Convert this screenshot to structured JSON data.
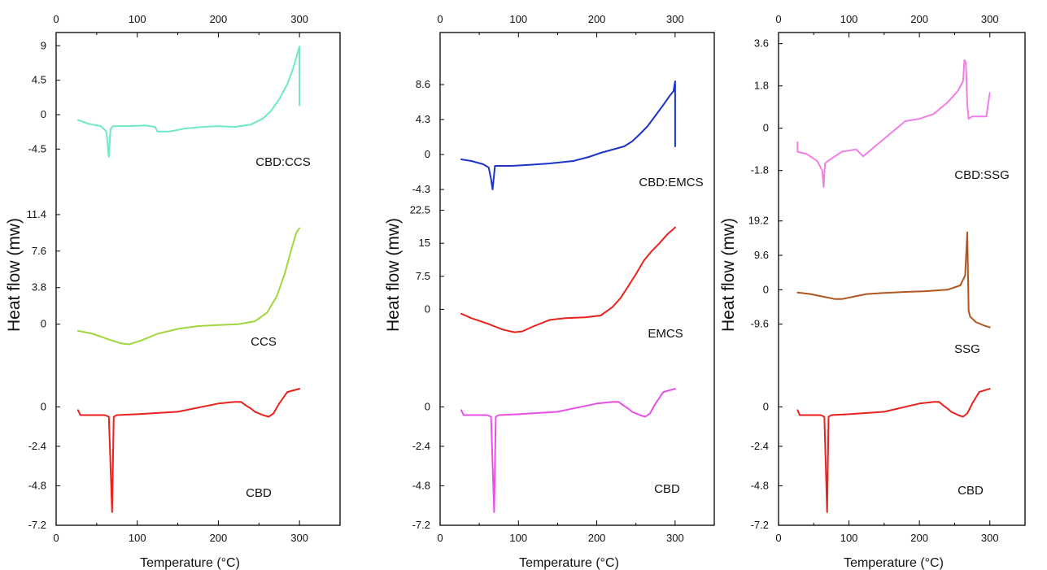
{
  "chart_data": [
    {
      "type": "line",
      "panel": "left",
      "xlabel": "Temperature (°C)",
      "ylabel": "Heat flow (mw)",
      "x_ticks": [
        "0",
        "100",
        "200",
        "300"
      ],
      "xlim": [
        0,
        350
      ],
      "subplots": [
        {
          "ylim": [
            -6.8,
            10.2
          ],
          "y_ticks": [
            "9",
            "4.5",
            "0",
            "-4.5"
          ],
          "y_tick_values": [
            9,
            4.5,
            0,
            -4.5
          ],
          "series": [
            {
              "name": "CBD:CCS",
              "color": "#6ee8c8",
              "x": [
                27,
                40,
                55,
                62,
                65,
                67,
                70,
                90,
                110,
                122,
                125,
                140,
                160,
                180,
                200,
                220,
                240,
                255,
                265,
                275,
                285,
                292,
                297,
                300,
                300
              ],
              "y": [
                -0.7,
                -1.2,
                -1.5,
                -2.2,
                -5.5,
                -1.9,
                -1.5,
                -1.5,
                -1.4,
                -1.6,
                -2.2,
                -2.2,
                -1.8,
                -1.6,
                -1.5,
                -1.6,
                -1.3,
                -0.5,
                0.5,
                2.0,
                4.0,
                6.0,
                7.8,
                8.9,
                1.2
              ]
            }
          ]
        },
        {
          "ylim": [
            -3.5,
            13.0
          ],
          "y_ticks": [
            "11.4",
            "7.6",
            "3.8",
            "0"
          ],
          "y_tick_values": [
            11.4,
            7.6,
            3.8,
            0
          ],
          "series": [
            {
              "name": "CCS",
              "color": "#a2d63e",
              "x": [
                27,
                45,
                65,
                80,
                90,
                105,
                125,
                150,
                175,
                200,
                225,
                245,
                260,
                272,
                282,
                290,
                296,
                300
              ],
              "y": [
                -0.7,
                -1.0,
                -1.6,
                -2.0,
                -2.1,
                -1.7,
                -1.0,
                -0.5,
                -0.2,
                -0.1,
                0.0,
                0.3,
                1.2,
                2.9,
                5.3,
                7.8,
                9.5,
                10.0
              ]
            }
          ]
        },
        {
          "ylim": [
            -7.2,
            1.5
          ],
          "y_ticks": [
            "0",
            "-2.4",
            "-4.8",
            "-7.2"
          ],
          "y_tick_values": [
            0,
            -2.4,
            -4.8,
            -7.2
          ],
          "series": [
            {
              "name": "CBD",
              "color": "#e8221c",
              "x": [
                27,
                30,
                45,
                60,
                65,
                67,
                69,
                71,
                75,
                100,
                150,
                200,
                220,
                228,
                235,
                240,
                245,
                255,
                262,
                268,
                275,
                285,
                300
              ],
              "y": [
                -0.2,
                -0.5,
                -0.5,
                -0.5,
                -0.6,
                -3.5,
                -6.4,
                -0.6,
                -0.5,
                -0.45,
                -0.3,
                0.2,
                0.3,
                0.3,
                0.05,
                -0.1,
                -0.3,
                -0.5,
                -0.6,
                -0.4,
                0.2,
                0.9,
                1.1
              ]
            }
          ]
        }
      ]
    },
    {
      "type": "line",
      "panel": "middle",
      "xlabel": "Temperature (°C)",
      "ylabel": "Heat flow (mw)",
      "x_ticks": [
        "0",
        "100",
        "200",
        "300"
      ],
      "xlim": [
        0,
        350
      ],
      "subplots": [
        {
          "ylim": [
            -5.5,
            12.0
          ],
          "y_ticks": [
            "8.6",
            "4.3",
            "0",
            "-4.3"
          ],
          "y_tick_values": [
            8.6,
            4.3,
            0,
            -4.3
          ],
          "series": [
            {
              "name": "CBD:EMCS",
              "color": "#1c34c8",
              "x": [
                27,
                40,
                55,
                62,
                65,
                67,
                70,
                90,
                110,
                140,
                170,
                190,
                205,
                220,
                235,
                245,
                255,
                265,
                275,
                285,
                293,
                298,
                300,
                300
              ],
              "y": [
                -0.6,
                -0.8,
                -1.2,
                -1.6,
                -3.0,
                -4.3,
                -1.4,
                -1.4,
                -1.3,
                -1.1,
                -0.8,
                -0.3,
                0.2,
                0.6,
                1.0,
                1.6,
                2.5,
                3.5,
                4.8,
                6.1,
                7.2,
                7.8,
                9.0,
                1.0
              ]
            }
          ]
        },
        {
          "ylim": [
            -11.0,
            25.0
          ],
          "y_ticks": [
            "22.5",
            "15",
            "7.5",
            "0"
          ],
          "y_tick_values": [
            22.5,
            15,
            7.5,
            0
          ],
          "series": [
            {
              "name": "EMCS",
              "color": "#e8221c",
              "x": [
                27,
                40,
                60,
                80,
                95,
                105,
                120,
                140,
                160,
                185,
                205,
                220,
                230,
                240,
                250,
                260,
                270,
                280,
                290,
                300
              ],
              "y": [
                -1.0,
                -2.0,
                -3.2,
                -4.6,
                -5.2,
                -5.0,
                -3.8,
                -2.4,
                -2.0,
                -1.8,
                -1.4,
                0.5,
                2.5,
                5.2,
                8.0,
                11.0,
                13.2,
                15.0,
                17.0,
                18.6
              ]
            }
          ]
        },
        {
          "ylim": [
            -7.2,
            1.5
          ],
          "y_ticks": [
            "0",
            "-2.4",
            "-4.8",
            "-7.2"
          ],
          "y_tick_values": [
            0,
            -2.4,
            -4.8,
            -7.2
          ],
          "series": [
            {
              "name": "CBD",
              "color": "#e850e8",
              "x": [
                27,
                30,
                45,
                60,
                65,
                67,
                69,
                71,
                75,
                100,
                150,
                200,
                220,
                228,
                235,
                240,
                245,
                255,
                262,
                268,
                275,
                285,
                300
              ],
              "y": [
                -0.2,
                -0.5,
                -0.5,
                -0.5,
                -0.6,
                -3.5,
                -6.4,
                -0.6,
                -0.5,
                -0.45,
                -0.3,
                0.2,
                0.3,
                0.3,
                0.05,
                -0.1,
                -0.3,
                -0.5,
                -0.6,
                -0.4,
                0.2,
                0.9,
                1.1
              ]
            }
          ]
        }
      ]
    },
    {
      "type": "line",
      "panel": "right",
      "xlabel": "Temperature (°C)",
      "ylabel": "Heat flow (mw)",
      "x_ticks": [
        "0",
        "100",
        "200",
        "300"
      ],
      "xlim": [
        0,
        350
      ],
      "subplots": [
        {
          "ylim": [
            -2.85,
            3.9
          ],
          "y_ticks": [
            "3.6",
            "1.8",
            "0",
            "-1.8"
          ],
          "y_tick_values": [
            3.6,
            1.8,
            0,
            -1.8
          ],
          "series": [
            {
              "name": "CBD:SSG",
              "color": "#f07ee8",
              "x": [
                27,
                27,
                40,
                55,
                62,
                64,
                66,
                70,
                90,
                110,
                117,
                120,
                140,
                160,
                180,
                200,
                220,
                240,
                255,
                262,
                264,
                266,
                268,
                270,
                275,
                285,
                295,
                300
              ],
              "y": [
                -0.6,
                -1.0,
                -1.1,
                -1.4,
                -1.8,
                -2.5,
                -1.5,
                -1.4,
                -1.0,
                -0.9,
                -1.1,
                -1.2,
                -0.7,
                -0.2,
                0.3,
                0.4,
                0.6,
                1.1,
                1.6,
                2.0,
                2.9,
                2.8,
                1.0,
                0.4,
                0.5,
                0.5,
                0.5,
                1.5
              ]
            }
          ]
        },
        {
          "ylim": [
            -19.0,
            23.0
          ],
          "y_ticks": [
            "19.2",
            "9.6",
            "0",
            "-9.6"
          ],
          "y_tick_values": [
            19.2,
            9.6,
            0,
            -9.6
          ],
          "series": [
            {
              "name": "SSG",
              "color": "#b0561e",
              "x": [
                27,
                45,
                65,
                80,
                90,
                105,
                125,
                150,
                180,
                210,
                240,
                258,
                265,
                268,
                270,
                272,
                280,
                292,
                300
              ],
              "y": [
                -0.8,
                -1.2,
                -2.0,
                -2.6,
                -2.6,
                -2.0,
                -1.2,
                -0.9,
                -0.6,
                -0.4,
                0.0,
                1.2,
                4.0,
                16.0,
                -6.0,
                -7.5,
                -9.0,
                -10.0,
                -10.5
              ]
            }
          ]
        },
        {
          "ylim": [
            -7.2,
            1.5
          ],
          "y_ticks": [
            "0",
            "-2.4",
            "-4.8",
            "-7.2"
          ],
          "y_tick_values": [
            0,
            -2.4,
            -4.8,
            -7.2
          ],
          "series": [
            {
              "name": "CBD",
              "color": "#e8221c",
              "x": [
                27,
                30,
                45,
                60,
                65,
                67,
                69,
                71,
                75,
                100,
                150,
                200,
                220,
                228,
                235,
                240,
                245,
                255,
                262,
                268,
                275,
                285,
                300
              ],
              "y": [
                -0.2,
                -0.5,
                -0.5,
                -0.5,
                -0.6,
                -3.5,
                -6.4,
                -0.6,
                -0.5,
                -0.45,
                -0.3,
                0.2,
                0.3,
                0.3,
                0.05,
                -0.1,
                -0.3,
                -0.5,
                -0.6,
                -0.4,
                0.2,
                0.9,
                1.1
              ]
            }
          ]
        }
      ]
    }
  ]
}
